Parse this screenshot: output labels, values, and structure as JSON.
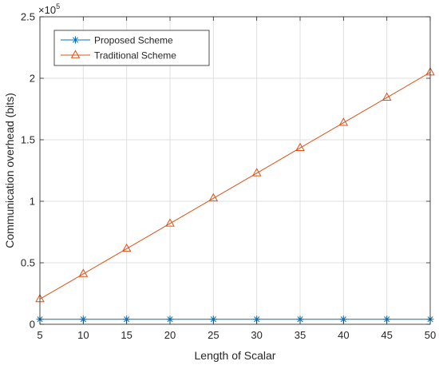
{
  "chart_data": {
    "type": "line",
    "title": "",
    "xlabel": "Length of Scalar",
    "ylabel": "Communication overhead (bits)",
    "x": [
      5,
      10,
      15,
      20,
      25,
      30,
      35,
      40,
      45,
      50
    ],
    "xlim": [
      5,
      50
    ],
    "ylim": [
      0,
      250000
    ],
    "x_ticks": [
      "5",
      "10",
      "15",
      "20",
      "25",
      "30",
      "35",
      "40",
      "45",
      "50"
    ],
    "y_ticks": [
      "0",
      "0.5",
      "1",
      "1.5",
      "2",
      "2.5"
    ],
    "y_tick_values": [
      0,
      50000,
      100000,
      150000,
      200000,
      250000
    ],
    "y_exponent_base": "×10",
    "y_exponent_power": "5",
    "grid": true,
    "legend_position": "top-left",
    "series": [
      {
        "name": "Proposed Scheme",
        "color": "#0072BD",
        "marker": "asterisk",
        "values": [
          4096,
          4096,
          4096,
          4096,
          4096,
          4096,
          4096,
          4096,
          4096,
          4096
        ]
      },
      {
        "name": "Traditional Scheme",
        "color": "#D95319",
        "marker": "triangle",
        "values": [
          20480,
          40960,
          61440,
          81920,
          102400,
          122880,
          143360,
          163840,
          184320,
          204800
        ]
      }
    ]
  }
}
